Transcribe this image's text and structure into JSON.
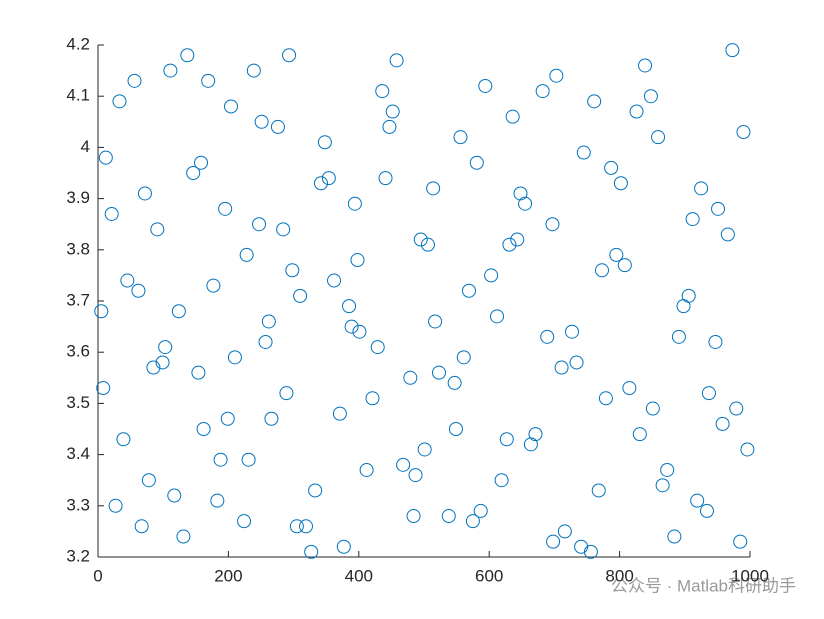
{
  "chart_data": {
    "type": "scatter",
    "color": "#0072bd",
    "grid": false,
    "xlim": [
      0,
      1000
    ],
    "xticks": [
      0,
      200,
      400,
      600,
      800,
      1000
    ],
    "ylim": [
      3.2,
      4.2
    ],
    "yticks": [
      3.2,
      3.3,
      3.4,
      3.5,
      3.6,
      3.7,
      3.8,
      3.9,
      4,
      4.1,
      4.2
    ],
    "x": [
      12,
      45,
      78,
      103,
      137,
      162,
      195,
      224,
      251,
      289,
      310,
      342,
      377,
      401,
      436,
      468,
      495,
      523,
      556,
      587,
      612,
      648,
      671,
      703,
      734,
      768,
      795,
      826,
      851,
      884,
      912,
      947,
      973,
      996,
      8,
      33,
      67,
      91,
      124,
      158,
      183,
      210,
      239,
      266,
      298,
      327,
      354,
      389,
      412,
      447,
      479,
      506,
      538,
      569,
      594,
      627,
      655,
      689,
      716,
      745,
      779,
      808,
      839,
      866,
      898,
      925,
      958,
      985,
      21,
      56,
      85,
      117,
      146,
      177,
      204,
      231,
      262,
      284,
      319,
      348,
      371,
      398,
      429,
      458,
      487,
      514,
      547,
      575,
      603,
      636,
      664,
      697,
      727,
      756,
      787,
      815,
      848,
      873,
      906,
      934,
      966,
      990,
      5,
      39,
      72,
      99,
      131,
      169,
      199,
      228,
      257,
      293,
      333,
      362,
      394,
      421,
      452,
      484,
      517,
      549,
      581,
      619,
      643,
      682,
      711,
      741,
      773,
      802,
      831,
      859,
      891,
      919,
      951,
      979,
      27,
      62,
      111,
      154,
      188,
      247,
      276,
      305,
      385,
      441,
      501,
      561,
      631,
      698,
      761,
      937
    ],
    "y": [
      3.98,
      3.74,
      3.35,
      3.61,
      4.18,
      3.45,
      3.88,
      3.27,
      4.05,
      3.52,
      3.71,
      3.93,
      3.22,
      3.64,
      4.11,
      3.38,
      3.82,
      3.56,
      4.02,
      3.29,
      3.67,
      3.91,
      3.44,
      4.14,
      3.58,
      3.33,
      3.79,
      4.07,
      3.49,
      3.24,
      3.86,
      3.62,
      4.19,
      3.41,
      3.53,
      4.09,
      3.26,
      3.84,
      3.68,
      3.97,
      3.31,
      3.59,
      4.15,
      3.47,
      3.76,
      3.21,
      3.94,
      3.65,
      3.37,
      4.04,
      3.55,
      3.81,
      3.28,
      3.72,
      4.12,
      3.43,
      3.89,
      3.63,
      3.25,
      3.99,
      3.51,
      3.77,
      4.16,
      3.34,
      3.69,
      3.92,
      3.46,
      3.23,
      3.87,
      4.13,
      3.57,
      3.32,
      3.95,
      3.73,
      4.08,
      3.39,
      3.66,
      3.84,
      3.26,
      4.01,
      3.48,
      3.78,
      3.61,
      4.17,
      3.36,
      3.92,
      3.54,
      3.27,
      3.75,
      4.06,
      3.42,
      3.85,
      3.64,
      3.21,
      3.96,
      3.53,
      4.1,
      3.37,
      3.71,
      3.29,
      3.83,
      4.03,
      3.68,
      3.43,
      3.91,
      3.58,
      3.24,
      4.13,
      3.47,
      3.79,
      3.62,
      4.18,
      3.33,
      3.74,
      3.89,
      3.51,
      4.07,
      3.28,
      3.66,
      3.45,
      3.97,
      3.35,
      3.82,
      4.11,
      3.57,
      3.22,
      3.76,
      3.93,
      3.44,
      4.02,
      3.63,
      3.31,
      3.88,
      3.49,
      3.3,
      3.72,
      4.15,
      3.56,
      3.39,
      3.85,
      4.04,
      3.26,
      3.69,
      3.94,
      3.41,
      3.59,
      3.81,
      3.23,
      4.09,
      3.52
    ],
    "annotation": "公众号 · Matlab科研助手"
  }
}
